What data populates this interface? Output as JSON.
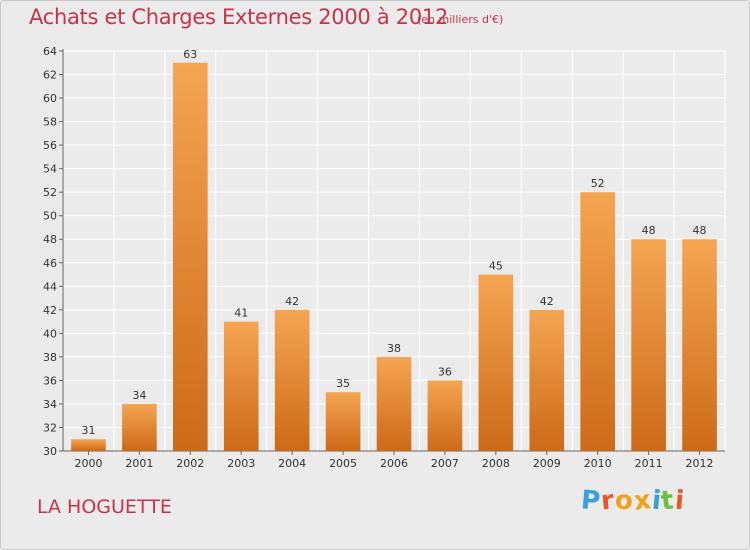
{
  "header": {
    "title": "Achats et Charges Externes 2000 à 2012",
    "unit": "(en milliers d'€)"
  },
  "footer": {
    "location": "LA HOGUETTE",
    "brand": "Proxiti",
    "brand_colors": [
      "#3aa0d8",
      "#e8562a",
      "#f0a020",
      "#f0a020",
      "#3aa0d8",
      "#6cbf3a",
      "#e8562a"
    ]
  },
  "colors": {
    "bar_top": "#f5a552",
    "bar_bottom": "#cc6a18",
    "title": "#c8324a",
    "grid": "#ffffff"
  },
  "chart_data": {
    "type": "bar",
    "categories": [
      "2000",
      "2001",
      "2002",
      "2003",
      "2004",
      "2005",
      "2006",
      "2007",
      "2008",
      "2009",
      "2010",
      "2011",
      "2012"
    ],
    "values": [
      31,
      34,
      63,
      41,
      42,
      35,
      38,
      36,
      45,
      42,
      52,
      48,
      48
    ],
    "title": "Achats et Charges Externes 2000 à 2012",
    "xlabel": "",
    "ylabel": "",
    "ylim": [
      30,
      64
    ],
    "yticks": [
      30,
      32,
      34,
      36,
      38,
      40,
      42,
      44,
      46,
      48,
      50,
      52,
      54,
      56,
      58,
      60,
      62,
      64
    ],
    "grid": true,
    "legend": "none"
  }
}
